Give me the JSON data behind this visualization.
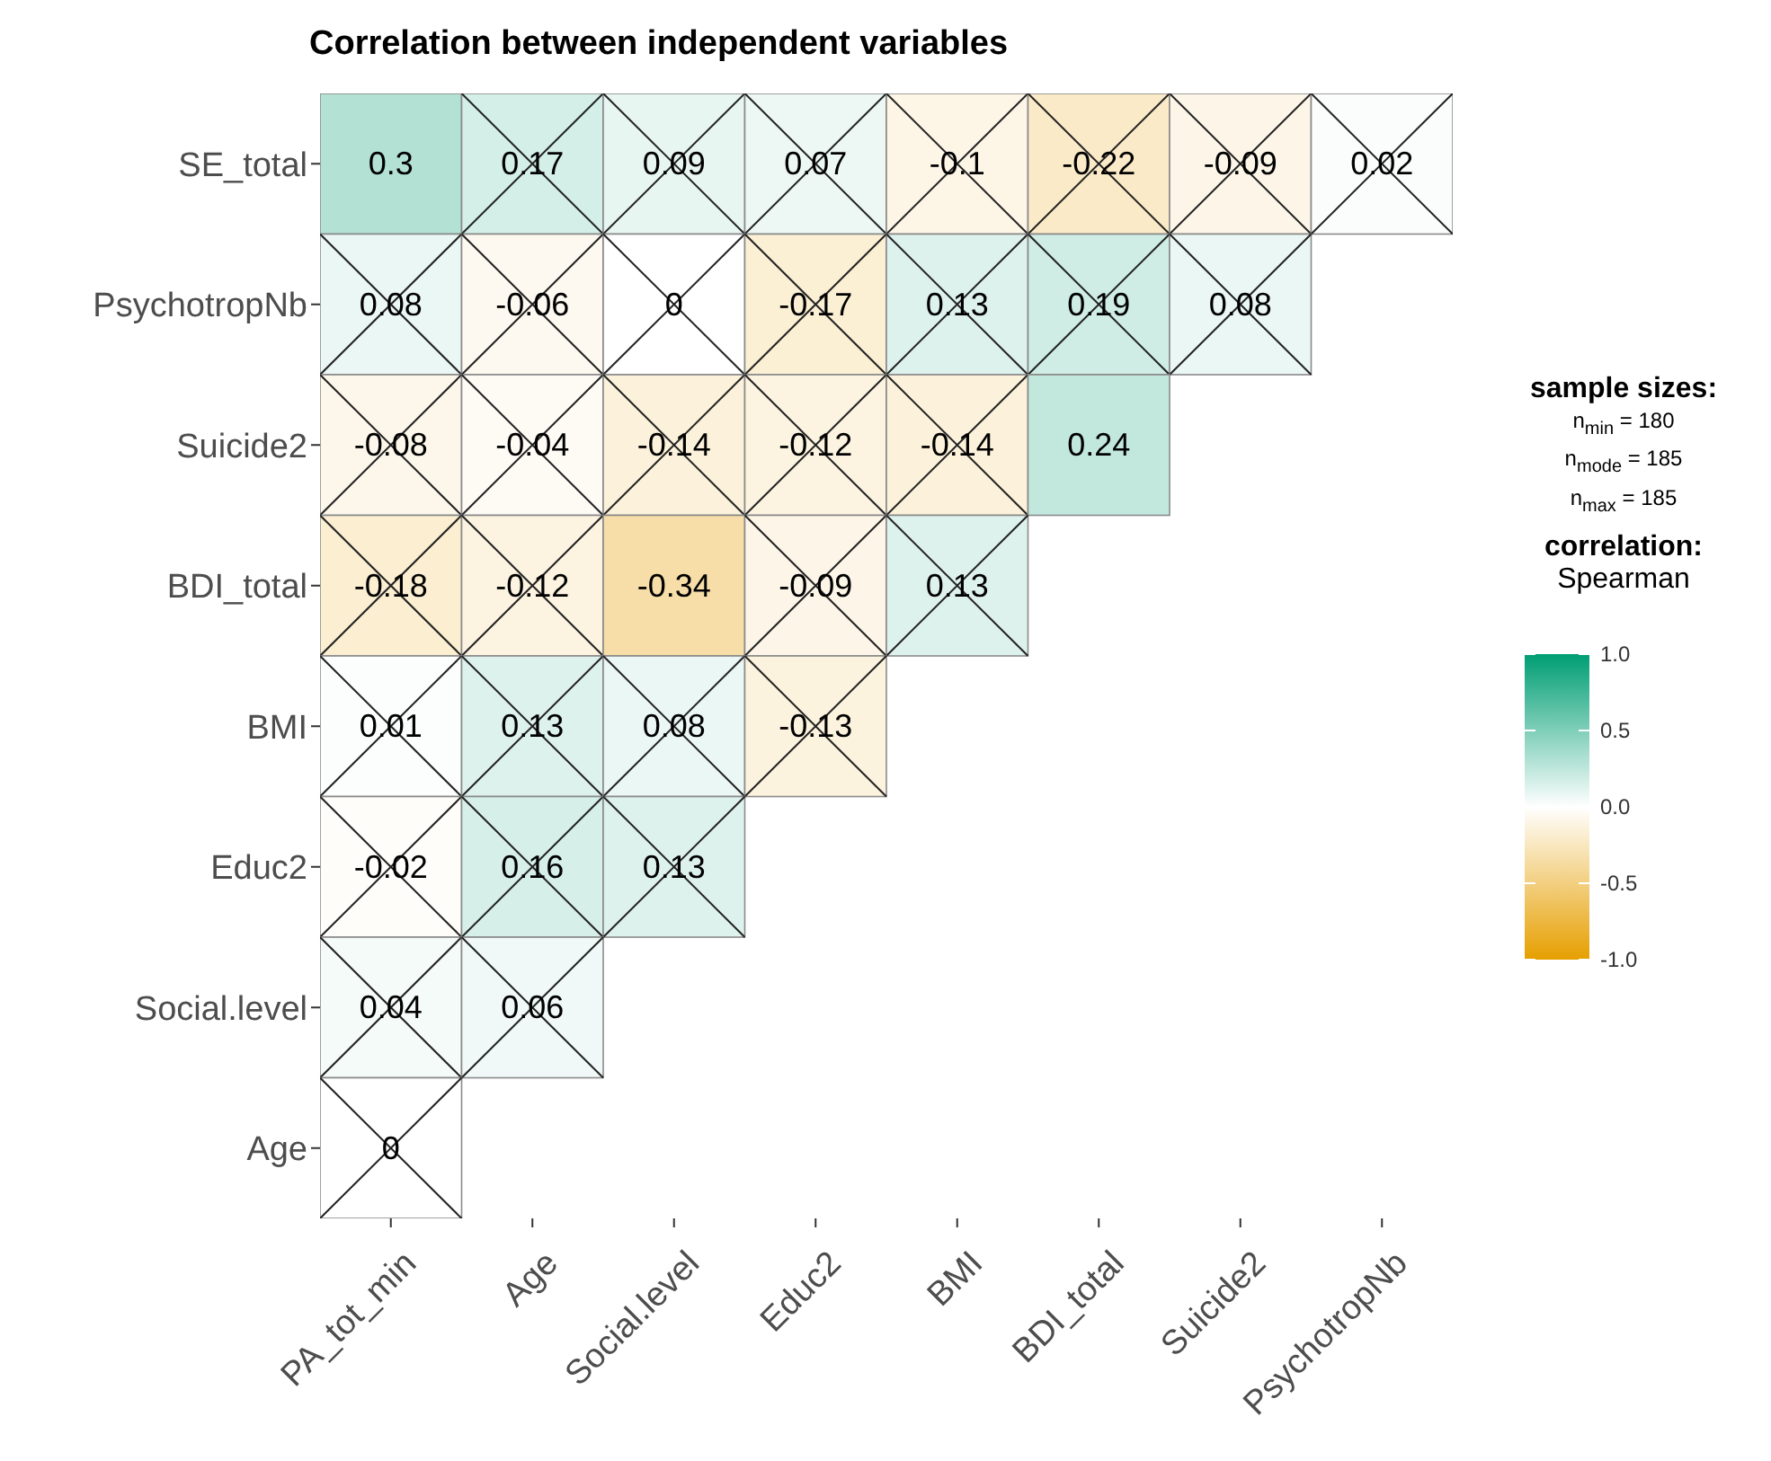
{
  "chart_data": {
    "type": "heatmap",
    "title": "Correlation between independent variables",
    "categories": [
      "PA_tot_min",
      "Age",
      "Social.level",
      "Educ2",
      "BMI",
      "BDI_total",
      "Suicide2",
      "PsychotropNb"
    ],
    "y_categories": [
      "SE_total",
      "PsychotropNb",
      "Suicide2",
      "BDI_total",
      "BMI",
      "Educ2",
      "Social.level",
      "Age"
    ],
    "cells": [
      [
        0.3,
        0.17,
        0.09,
        0.07,
        -0.1,
        -0.22,
        -0.09,
        0.02
      ],
      [
        0.08,
        -0.06,
        0,
        -0.17,
        0.13,
        0.19,
        0.08,
        null
      ],
      [
        -0.08,
        -0.04,
        -0.14,
        -0.12,
        -0.14,
        0.24,
        null,
        null
      ],
      [
        -0.18,
        -0.12,
        -0.34,
        -0.09,
        0.13,
        null,
        null,
        null
      ],
      [
        0.01,
        0.13,
        0.08,
        -0.13,
        null,
        null,
        null,
        null
      ],
      [
        -0.02,
        0.16,
        0.13,
        null,
        null,
        null,
        null,
        null
      ],
      [
        0.04,
        0.06,
        null,
        null,
        null,
        null,
        null,
        null
      ],
      [
        0,
        null,
        null,
        null,
        null,
        null,
        null,
        null
      ]
    ],
    "data_labels": true,
    "clabel": "correlation:",
    "clim": [
      -1,
      1
    ],
    "cticks": [
      {
        "value": 1,
        "label": "1.0"
      },
      {
        "value": 0.5,
        "label": "0.5"
      },
      {
        "value": 0,
        "label": "0.0"
      },
      {
        "value": -0.5,
        "label": "-0.5"
      },
      {
        "value": -1,
        "label": "-1.0"
      }
    ],
    "annotations": [
      "sample sizes:",
      "n$_{min}$ = 180",
      "n$_{mode}$ = 185",
      "n$_{max}$ = 185",
      "Spearman"
    ]
  }
}
